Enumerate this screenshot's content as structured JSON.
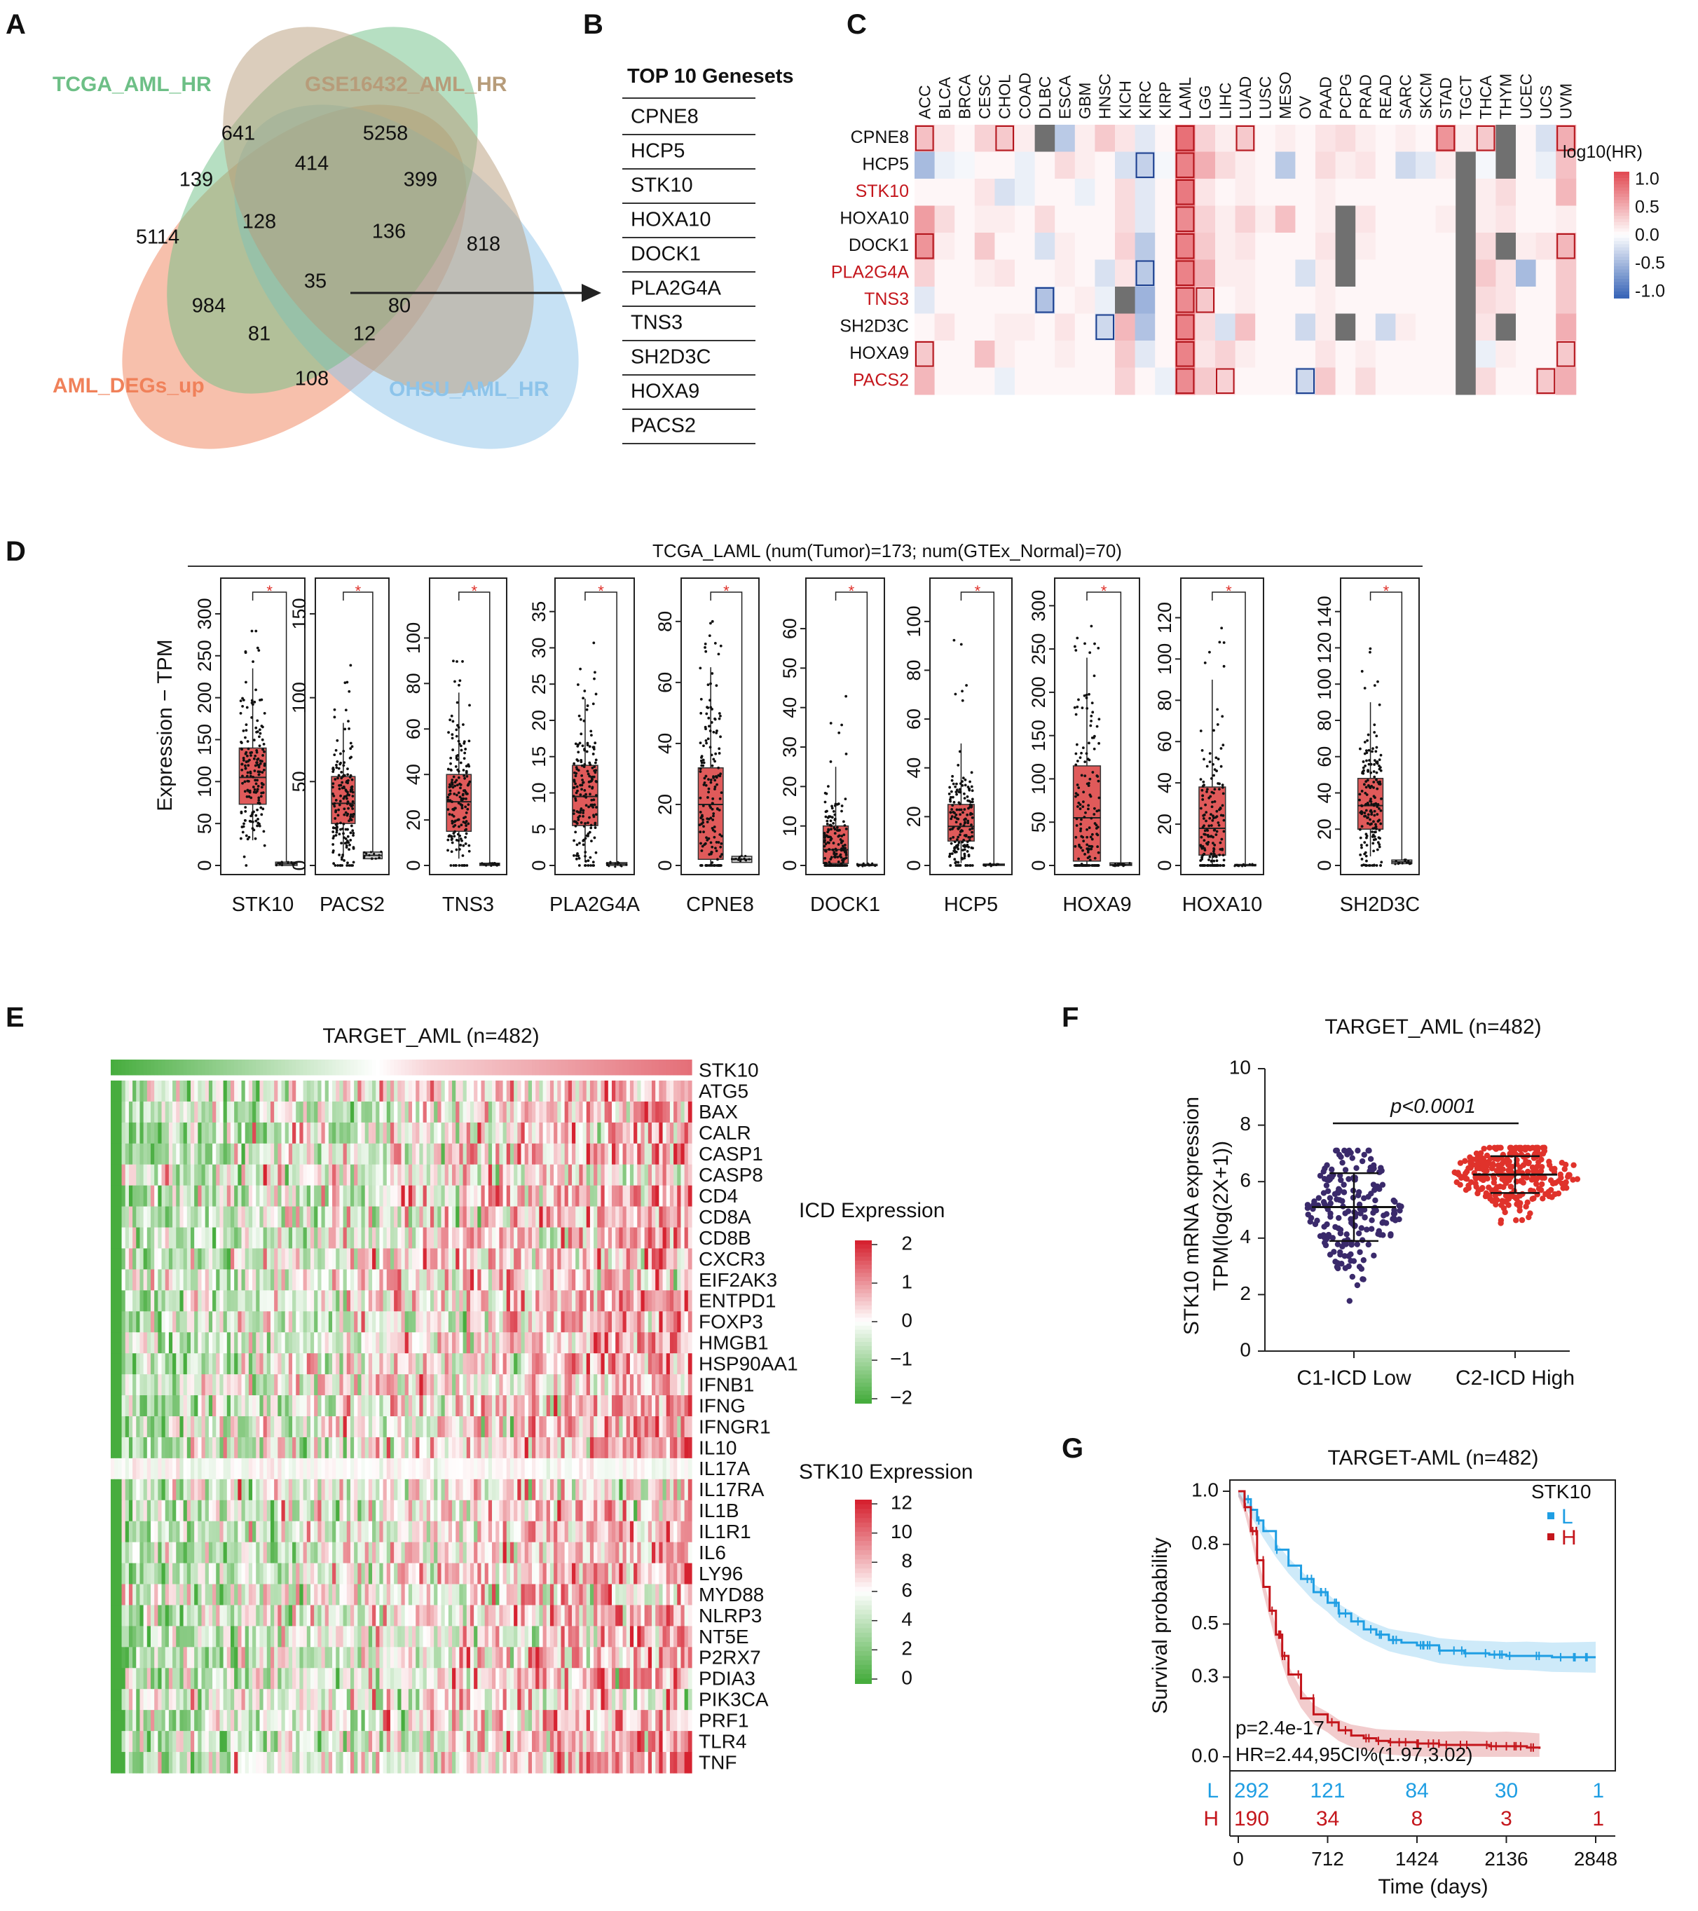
{
  "panel_letters": [
    "A",
    "B",
    "C",
    "D",
    "E",
    "F",
    "G"
  ],
  "chart_data": [
    {
      "panel": "A",
      "type": "venn",
      "sets": [
        {
          "name": "TCGA_AML_HR",
          "color": "#6dbf86"
        },
        {
          "name": "GSE16432_AML_HR",
          "color": "#b79c7a"
        },
        {
          "name": "AML_DEGs_up",
          "color": "#f0815a"
        },
        {
          "name": "OHSU_AML_HR",
          "color": "#8dc4ea"
        }
      ],
      "region_counts": [
        "641",
        "5258",
        "139",
        "414",
        "399",
        "5114",
        "128",
        "136",
        "818",
        "35",
        "984",
        "80",
        "81",
        "12",
        "108"
      ]
    },
    {
      "panel": "B",
      "type": "table",
      "title": "TOP 10 Genesets",
      "rows": [
        "CPNE8",
        "HCP5",
        "STK10",
        "HOXA10",
        "DOCK1",
        "PLA2G4A",
        "TNS3",
        "SH2D3C",
        "HOXA9",
        "PACS2"
      ]
    },
    {
      "panel": "C",
      "type": "heatmap",
      "columns": [
        "ACC",
        "BLCA",
        "BRCA",
        "CESC",
        "CHOL",
        "COAD",
        "DLBC",
        "ESCA",
        "GBM",
        "HNSC",
        "KICH",
        "KIRC",
        "KIRP",
        "LAML",
        "LGG",
        "LIHC",
        "LUAD",
        "LUSC",
        "MESO",
        "OV",
        "PAAD",
        "PCPG",
        "PRAD",
        "READ",
        "SARC",
        "SKCM",
        "STAD",
        "TGCT",
        "THCA",
        "THYM",
        "UCEC",
        "UCS",
        "UVM"
      ],
      "rows": [
        {
          "label": "CPNE8",
          "highlight": false
        },
        {
          "label": "HCP5",
          "highlight": false
        },
        {
          "label": "STK10",
          "highlight": true
        },
        {
          "label": "HOXA10",
          "highlight": false
        },
        {
          "label": "DOCK1",
          "highlight": false
        },
        {
          "label": "PLA2G4A",
          "highlight": true
        },
        {
          "label": "TNS3",
          "highlight": true
        },
        {
          "label": "SH2D3C",
          "highlight": false
        },
        {
          "label": "HOXA9",
          "highlight": false
        },
        {
          "label": "PACS2",
          "highlight": true
        }
      ],
      "values": [
        [
          0.35,
          0.15,
          0.05,
          0.25,
          0.3,
          0.1,
          null,
          -0.35,
          0.1,
          0.3,
          0.15,
          -0.15,
          0.05,
          0.8,
          0.25,
          0.1,
          0.3,
          0.05,
          0.1,
          0.05,
          0.15,
          0.2,
          0.1,
          0.05,
          0.1,
          0.05,
          0.6,
          0.1,
          0.3,
          null,
          0.05,
          -0.2,
          0.45
        ],
        [
          -0.45,
          -0.1,
          -0.05,
          0.05,
          0.05,
          -0.1,
          0.05,
          0.2,
          0.1,
          0.05,
          -0.2,
          -0.3,
          -0.05,
          0.7,
          0.45,
          0.2,
          0.1,
          0.05,
          -0.35,
          0.05,
          0.2,
          0.1,
          0.15,
          0.05,
          -0.25,
          -0.15,
          0.1,
          null,
          -0.05,
          null,
          0.05,
          -0.1,
          0.35
        ],
        [
          0.05,
          0.05,
          0.05,
          0.15,
          -0.2,
          -0.1,
          0.05,
          0.05,
          -0.1,
          0.05,
          0.2,
          -0.15,
          0.05,
          0.75,
          0.15,
          0.05,
          0.1,
          0.05,
          0.05,
          0.05,
          0.1,
          0.05,
          0.05,
          0.05,
          0.05,
          0.05,
          0.05,
          null,
          0.1,
          0.2,
          0.05,
          0.05,
          0.4
        ],
        [
          0.55,
          0.2,
          0.05,
          0.1,
          0.1,
          0.05,
          0.2,
          0.05,
          0.05,
          0.05,
          0.2,
          -0.15,
          0.05,
          0.65,
          0.25,
          0.1,
          0.25,
          0.1,
          0.35,
          0.05,
          0.1,
          null,
          0.15,
          0.05,
          0.05,
          0.05,
          0.1,
          null,
          0.1,
          0.15,
          0.05,
          0.05,
          0.1
        ],
        [
          0.6,
          0.1,
          0.05,
          0.3,
          0.05,
          0.05,
          -0.2,
          0.1,
          0.05,
          0.05,
          0.25,
          -0.35,
          0.05,
          0.7,
          0.3,
          0.1,
          0.15,
          0.05,
          0.05,
          0.05,
          0.15,
          null,
          0.1,
          0.05,
          0.05,
          0.05,
          0.05,
          null,
          0.2,
          null,
          0.1,
          0.15,
          0.4
        ],
        [
          0.25,
          0.05,
          0.05,
          0.1,
          0.15,
          0.05,
          0.05,
          0.1,
          0.05,
          -0.2,
          0.15,
          -0.35,
          0.05,
          0.7,
          0.45,
          0.1,
          0.1,
          0.05,
          0.05,
          -0.2,
          0.1,
          null,
          0.05,
          0.05,
          0.05,
          0.05,
          0.05,
          null,
          0.3,
          0.15,
          -0.45,
          0.05,
          0.3
        ],
        [
          -0.15,
          0.05,
          0.05,
          0.05,
          0.05,
          0.05,
          -0.4,
          0.05,
          0.1,
          -0.1,
          null,
          -0.5,
          0.05,
          0.65,
          0.3,
          0.05,
          0.1,
          0.05,
          0.05,
          0.05,
          0.1,
          0.05,
          0.05,
          0.05,
          0.05,
          0.05,
          0.05,
          null,
          0.2,
          0.15,
          0.05,
          0.05,
          0.3
        ],
        [
          0.05,
          0.15,
          0.05,
          0.05,
          0.1,
          0.1,
          0.05,
          0.15,
          0.05,
          -0.25,
          0.4,
          -0.4,
          0.05,
          0.7,
          0.2,
          -0.2,
          0.35,
          0.05,
          0.05,
          -0.25,
          0.1,
          null,
          0.05,
          -0.25,
          0.1,
          0.05,
          0.05,
          null,
          0.15,
          null,
          0.05,
          0.05,
          0.45
        ],
        [
          0.3,
          0.05,
          0.05,
          0.35,
          0.1,
          0.05,
          0.05,
          0.1,
          0.05,
          0.05,
          0.3,
          -0.15,
          0.05,
          0.7,
          0.15,
          0.25,
          0.1,
          0.05,
          0.05,
          0.05,
          0.15,
          0.05,
          0.1,
          0.05,
          0.05,
          0.05,
          0.05,
          null,
          -0.1,
          0.1,
          0.05,
          0.05,
          0.3
        ],
        [
          0.4,
          0.05,
          0.05,
          0.05,
          -0.1,
          0.05,
          0.05,
          0.05,
          0.05,
          0.05,
          0.25,
          0.05,
          -0.1,
          0.65,
          0.3,
          0.25,
          0.05,
          0.05,
          0.05,
          -0.25,
          0.3,
          0.05,
          0.2,
          0.05,
          0.05,
          0.05,
          0.05,
          null,
          0.2,
          0.05,
          0.05,
          0.3,
          0.45
        ]
      ],
      "legend": {
        "title": "log10(HR)",
        "ticks": [
          "1.0",
          "0.5",
          "0.0",
          "-0.5",
          "-1.0"
        ]
      }
    },
    {
      "panel": "D",
      "type": "boxplot",
      "strip_title": "TCGA_LAML (num(Tumor)=173; num(GTEx_Normal)=70)",
      "ylabel": "Expression − TPM",
      "significance": "*",
      "genes": [
        {
          "name": "STK10",
          "yticks": [
            "0",
            "50",
            "100",
            "150",
            "200",
            "250",
            "300"
          ],
          "ymax": 320,
          "tumor": {
            "q1": 73,
            "med": 105,
            "q3": 140,
            "lo": 30,
            "hi": 235,
            "max": 300
          },
          "normal": {
            "q1": 0,
            "med": 2,
            "q3": 4
          }
        },
        {
          "name": "PACS2",
          "yticks": [
            "0",
            "50",
            "100",
            "150"
          ],
          "ymax": 160,
          "tumor": {
            "q1": 25,
            "med": 37,
            "q3": 53,
            "lo": 5,
            "hi": 85,
            "max": 120
          },
          "normal": {
            "q1": 4,
            "med": 6,
            "q3": 8
          }
        },
        {
          "name": "TNS3",
          "yticks": [
            "0",
            "20",
            "40",
            "60",
            "80",
            "100"
          ],
          "ymax": 118,
          "tumor": {
            "q1": 15,
            "med": 28,
            "q3": 40,
            "lo": 3,
            "hi": 76,
            "max": 90
          },
          "normal": {
            "q1": 0,
            "med": 0.5,
            "q3": 1
          }
        },
        {
          "name": "PLA2G4A",
          "yticks": [
            "0",
            "5",
            "10",
            "15",
            "20",
            "25",
            "30",
            "35"
          ],
          "ymax": 37,
          "tumor": {
            "q1": 5.5,
            "med": 9.5,
            "q3": 13.8,
            "lo": 0.5,
            "hi": 23,
            "max": 31
          },
          "normal": {
            "q1": 0,
            "med": 0.2,
            "q3": 0.4
          }
        },
        {
          "name": "CPNE8",
          "yticks": [
            "0",
            "20",
            "40",
            "60",
            "80"
          ],
          "ymax": 88,
          "tumor": {
            "q1": 2,
            "med": 20,
            "q3": 32,
            "lo": 0,
            "hi": 65,
            "max": 80
          },
          "normal": {
            "q1": 1,
            "med": 2,
            "q3": 3
          }
        },
        {
          "name": "DOCK1",
          "yticks": [
            "0",
            "10",
            "20",
            "30",
            "40",
            "50",
            "60"
          ],
          "ymax": 68,
          "tumor": {
            "q1": 0.5,
            "med": 4,
            "q3": 10,
            "lo": 0,
            "hi": 25,
            "max": 45
          },
          "normal": {
            "q1": 0,
            "med": 0.1,
            "q3": 0.3
          }
        },
        {
          "name": "HCP5",
          "yticks": [
            "0",
            "20",
            "40",
            "60",
            "80",
            "100"
          ],
          "ymax": 110,
          "tumor": {
            "q1": 10,
            "med": 16,
            "q3": 25,
            "lo": 1,
            "hi": 50,
            "max": 98
          },
          "normal": {
            "q1": 0,
            "med": 0.3,
            "q3": 0.6
          }
        },
        {
          "name": "HOXA9",
          "yticks": [
            "0",
            "50",
            "100",
            "150",
            "200",
            "250",
            "300"
          ],
          "ymax": 310,
          "tumor": {
            "q1": 5,
            "med": 55,
            "q3": 115,
            "lo": 0,
            "hi": 240,
            "max": 285
          },
          "normal": {
            "q1": 0,
            "med": 1,
            "q3": 3
          }
        },
        {
          "name": "HOXA10",
          "yticks": [
            "0",
            "20",
            "40",
            "60",
            "80",
            "100",
            "120"
          ],
          "ymax": 130,
          "tumor": {
            "q1": 5,
            "med": 18,
            "q3": 38,
            "lo": 0,
            "hi": 90,
            "max": 120
          },
          "normal": {
            "q1": 0,
            "med": 0.2,
            "q3": 0.5
          }
        },
        {
          "name": "SH2D3C",
          "yticks": [
            "0",
            "20",
            "40",
            "60",
            "80",
            "100",
            "120",
            "140"
          ],
          "ymax": 148,
          "tumor": {
            "q1": 20,
            "med": 33,
            "q3": 48,
            "lo": 5,
            "hi": 90,
            "max": 125
          },
          "normal": {
            "q1": 1,
            "med": 2,
            "q3": 3
          }
        }
      ]
    },
    {
      "panel": "E",
      "type": "heatmap",
      "title": "TARGET_AML (n=482)",
      "rows": [
        "STK10",
        "ATG5",
        "BAX",
        "CALR",
        "CASP1",
        "CASP8",
        "CD4",
        "CD8A",
        "CD8B",
        "CXCR3",
        "EIF2AK3",
        "ENTPD1",
        "FOXP3",
        "HMGB1",
        "HSP90AA1",
        "IFNB1",
        "IFNG",
        "IFNGR1",
        "IL10",
        "IL17A",
        "IL17RA",
        "IL1B",
        "IL1R1",
        "IL6",
        "LY96",
        "MYD88",
        "NLRP3",
        "NT5E",
        "P2RX7",
        "PDIA3",
        "PIK3CA",
        "PRF1",
        "TLR4",
        "TNF"
      ],
      "n_samples": 482,
      "legend_icd": {
        "title": "ICD Expression",
        "ticks": [
          "2",
          "1",
          "0",
          "−1",
          "−2"
        ]
      },
      "legend_stk10": {
        "title": "STK10 Expression",
        "ticks": [
          "12",
          "10",
          "8",
          "6",
          "4",
          "2",
          "0"
        ]
      }
    },
    {
      "panel": "F",
      "type": "scatter",
      "title": "TARGET_AML (n=482)",
      "ylabel_line1": "STK10 mRNA expression",
      "ylabel_line2": "TPM(log(2X+1))",
      "yticks": [
        "0",
        "2",
        "4",
        "6",
        "8",
        "10"
      ],
      "ylim": [
        0,
        10
      ],
      "pvalue": "p<0.0001",
      "groups": [
        {
          "name": "C1-ICD Low",
          "color": "#3a2a6b",
          "mean": 5.1,
          "sd": 1.2,
          "n": 200
        },
        {
          "name": "C2-ICD High",
          "color": "#e0322b",
          "mean": 6.25,
          "sd": 0.65,
          "n": 282
        }
      ]
    },
    {
      "panel": "G",
      "type": "line",
      "title": "TARGET-AML (n=482)",
      "xlabel": "Time (days)",
      "ylabel": "Survival probability",
      "xticks": [
        "0",
        "712",
        "1424",
        "2136",
        "2848"
      ],
      "yticks": [
        "0.0",
        "0.3",
        "0.5",
        "0.8",
        "1.0"
      ],
      "xlim": [
        0,
        2848
      ],
      "ylim": [
        0,
        1
      ],
      "legend_title": "STK10",
      "pvalue_text": "p=2.4e-17",
      "hr_text": "HR=2.44,95CI%(1.97,3.02)",
      "series": [
        {
          "name": "L",
          "color": "#1f9ee3",
          "x": [
            0,
            50,
            100,
            150,
            200,
            300,
            400,
            500,
            600,
            712,
            800,
            900,
            1000,
            1100,
            1200,
            1300,
            1424,
            1600,
            1800,
            2000,
            2136,
            2300,
            2500,
            2700,
            2848
          ],
          "y": [
            1.0,
            0.97,
            0.93,
            0.89,
            0.85,
            0.78,
            0.72,
            0.67,
            0.62,
            0.58,
            0.54,
            0.51,
            0.48,
            0.46,
            0.44,
            0.43,
            0.42,
            0.4,
            0.39,
            0.385,
            0.38,
            0.38,
            0.375,
            0.375,
            0.375
          ]
        },
        {
          "name": "H",
          "color": "#c4161c",
          "x": [
            0,
            50,
            100,
            150,
            200,
            250,
            300,
            350,
            400,
            500,
            600,
            712,
            800,
            900,
            1000,
            1100,
            1200,
            1424,
            1600,
            1800,
            2000,
            2136,
            2300,
            2400
          ],
          "y": [
            1.0,
            0.94,
            0.85,
            0.74,
            0.64,
            0.55,
            0.46,
            0.38,
            0.31,
            0.22,
            0.16,
            0.13,
            0.1,
            0.08,
            0.07,
            0.06,
            0.055,
            0.05,
            0.045,
            0.045,
            0.04,
            0.04,
            0.035,
            0.03
          ]
        }
      ],
      "risk_table": {
        "L": [
          "292",
          "121",
          "84",
          "30",
          "1"
        ],
        "H": [
          "190",
          "34",
          "8",
          "3",
          "1"
        ]
      }
    }
  ]
}
